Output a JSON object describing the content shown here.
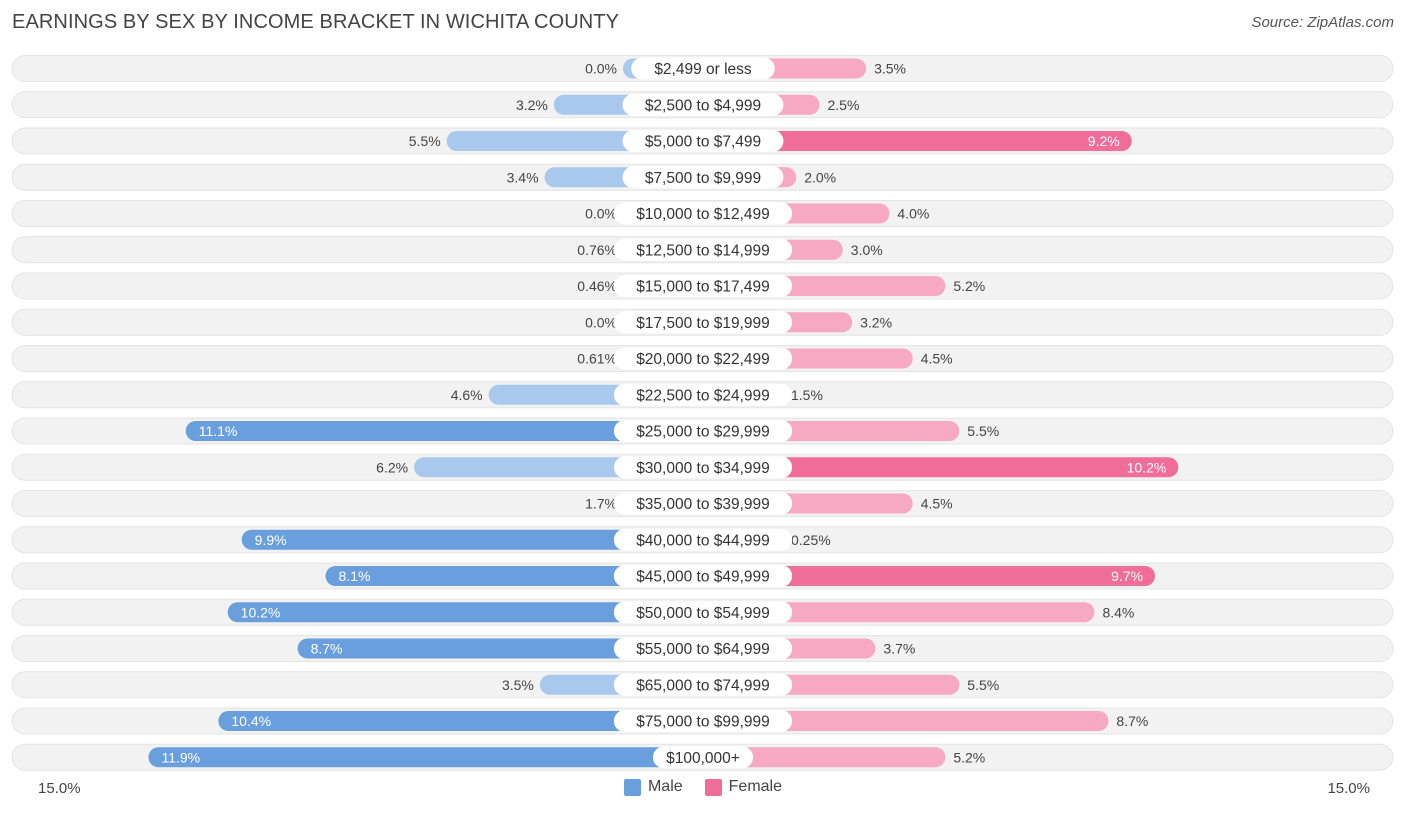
{
  "header": {
    "title": "EARNINGS BY SEX BY INCOME BRACKET IN WICHITA COUNTY",
    "source": "Source: ZipAtlas.com"
  },
  "colors": {
    "male_dark": "#6a9fdd",
    "male_light": "#a9c8ee",
    "female_dark": "#f06d99",
    "female_light": "#f7a8c2",
    "row_bg": "#f2f2f2"
  },
  "chart_data": {
    "type": "bar",
    "orientation": "horizontal-diverging",
    "title": "EARNINGS BY SEX BY INCOME BRACKET IN WICHITA COUNTY",
    "categories": [
      "$2,499 or less",
      "$2,500 to $4,999",
      "$5,000 to $7,499",
      "$7,500 to $9,999",
      "$10,000 to $12,499",
      "$12,500 to $14,999",
      "$15,000 to $17,499",
      "$17,500 to $19,999",
      "$20,000 to $22,499",
      "$22,500 to $24,999",
      "$25,000 to $29,999",
      "$30,000 to $34,999",
      "$35,000 to $39,999",
      "$40,000 to $44,999",
      "$45,000 to $49,999",
      "$50,000 to $54,999",
      "$55,000 to $64,999",
      "$65,000 to $74,999",
      "$75,000 to $99,999",
      "$100,000+"
    ],
    "series": [
      {
        "name": "Male",
        "values": [
          0.0,
          3.2,
          5.5,
          3.4,
          0.0,
          0.76,
          0.46,
          0.0,
          0.61,
          4.6,
          11.1,
          6.2,
          1.7,
          9.9,
          8.1,
          10.2,
          8.7,
          3.5,
          10.4,
          11.9
        ],
        "labels": [
          "0.0%",
          "3.2%",
          "5.5%",
          "3.4%",
          "0.0%",
          "0.76%",
          "0.46%",
          "0.0%",
          "0.61%",
          "4.6%",
          "11.1%",
          "6.2%",
          "1.7%",
          "9.9%",
          "8.1%",
          "10.2%",
          "8.7%",
          "3.5%",
          "10.4%",
          "11.9%"
        ]
      },
      {
        "name": "Female",
        "values": [
          3.5,
          2.5,
          9.2,
          2.0,
          4.0,
          3.0,
          5.2,
          3.2,
          4.5,
          1.5,
          5.5,
          10.2,
          4.5,
          0.25,
          9.7,
          8.4,
          3.7,
          5.5,
          8.7,
          5.2
        ],
        "labels": [
          "3.5%",
          "2.5%",
          "9.2%",
          "2.0%",
          "4.0%",
          "3.0%",
          "5.2%",
          "3.2%",
          "4.5%",
          "1.5%",
          "5.5%",
          "10.2%",
          "4.5%",
          "0.25%",
          "9.7%",
          "8.4%",
          "3.7%",
          "5.5%",
          "8.7%",
          "5.2%"
        ]
      }
    ],
    "xlim": [
      -15.0,
      15.0
    ],
    "axis_min_label": "15.0%",
    "axis_max_label": "15.0%",
    "legend": [
      "Male",
      "Female"
    ],
    "legend_position": "bottom-center"
  }
}
